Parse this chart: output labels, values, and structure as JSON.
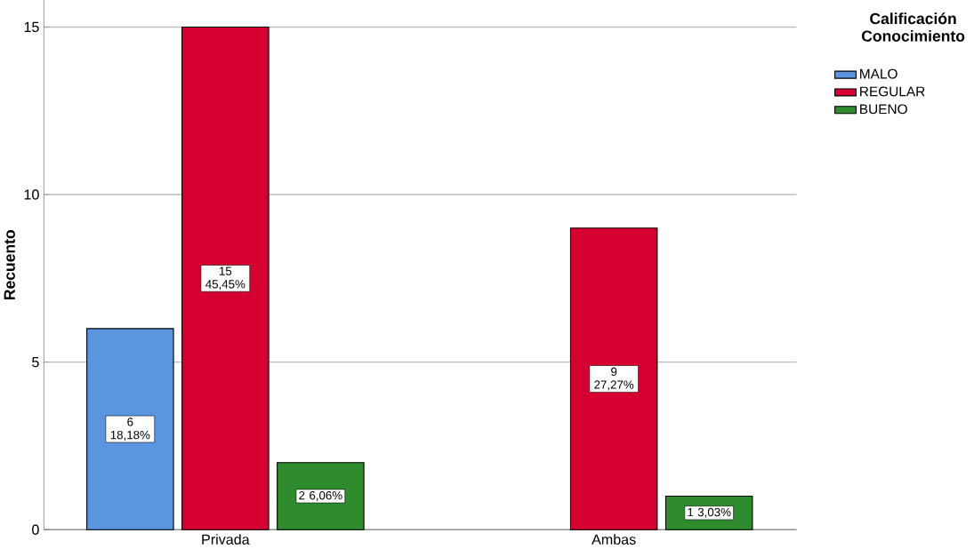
{
  "chart_data": {
    "type": "bar",
    "ylabel": "Recuento",
    "legend_title": "Calificación Conocimiento",
    "categories": [
      "Privada",
      "Ambas"
    ],
    "series": [
      {
        "name": "MALO",
        "color": "#5b95e0",
        "values": [
          6,
          null
        ],
        "value_labels": [
          "6 18,18%",
          null
        ]
      },
      {
        "name": "REGULAR",
        "color": "#d5002f",
        "values": [
          15,
          9
        ],
        "value_labels": [
          "15 45,45%",
          "9 27,27%"
        ]
      },
      {
        "name": "BUENO",
        "color": "#2e8b2e",
        "values": [
          2,
          1
        ],
        "value_labels": [
          "2 6,06%",
          "1 3,03%"
        ]
      }
    ],
    "ylim": [
      0,
      15.8
    ],
    "yticks": [
      0,
      5,
      10,
      15
    ],
    "grid": "y",
    "legend": "right"
  }
}
